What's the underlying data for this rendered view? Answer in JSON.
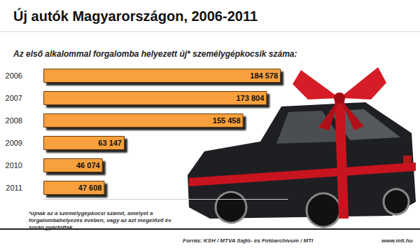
{
  "chart_data": {
    "type": "bar",
    "title": "Új autók Magyarországon, 2006-2011",
    "subtitle": "Az első alkalommal forgalomba helyezett új* személygépkocsik száma:",
    "annotations": [
      "*újnak az a személygépkocsi számít, amelyet a forgalombahelyezés évében, vagy az azt megelőző év során gyártottak",
      "Forrás: KSH / MTVA Sajtó- és Fotóarchívum / MTI",
      "www.mti.hu"
    ],
    "categories": [
      "2006",
      "2007",
      "2008",
      "2009",
      "2010",
      "2011"
    ],
    "values": [
      184578,
      173804,
      155458,
      63147,
      46074,
      47608
    ],
    "value_labels": [
      "184 578",
      "173 804",
      "155 458",
      "63 147",
      "46 074",
      "47 608"
    ],
    "color": "#f7a03c",
    "orientation": "horizontal",
    "data_labels": true,
    "tick_labels": "y",
    "grid": false,
    "xlim": [
      0,
      190000
    ]
  }
}
